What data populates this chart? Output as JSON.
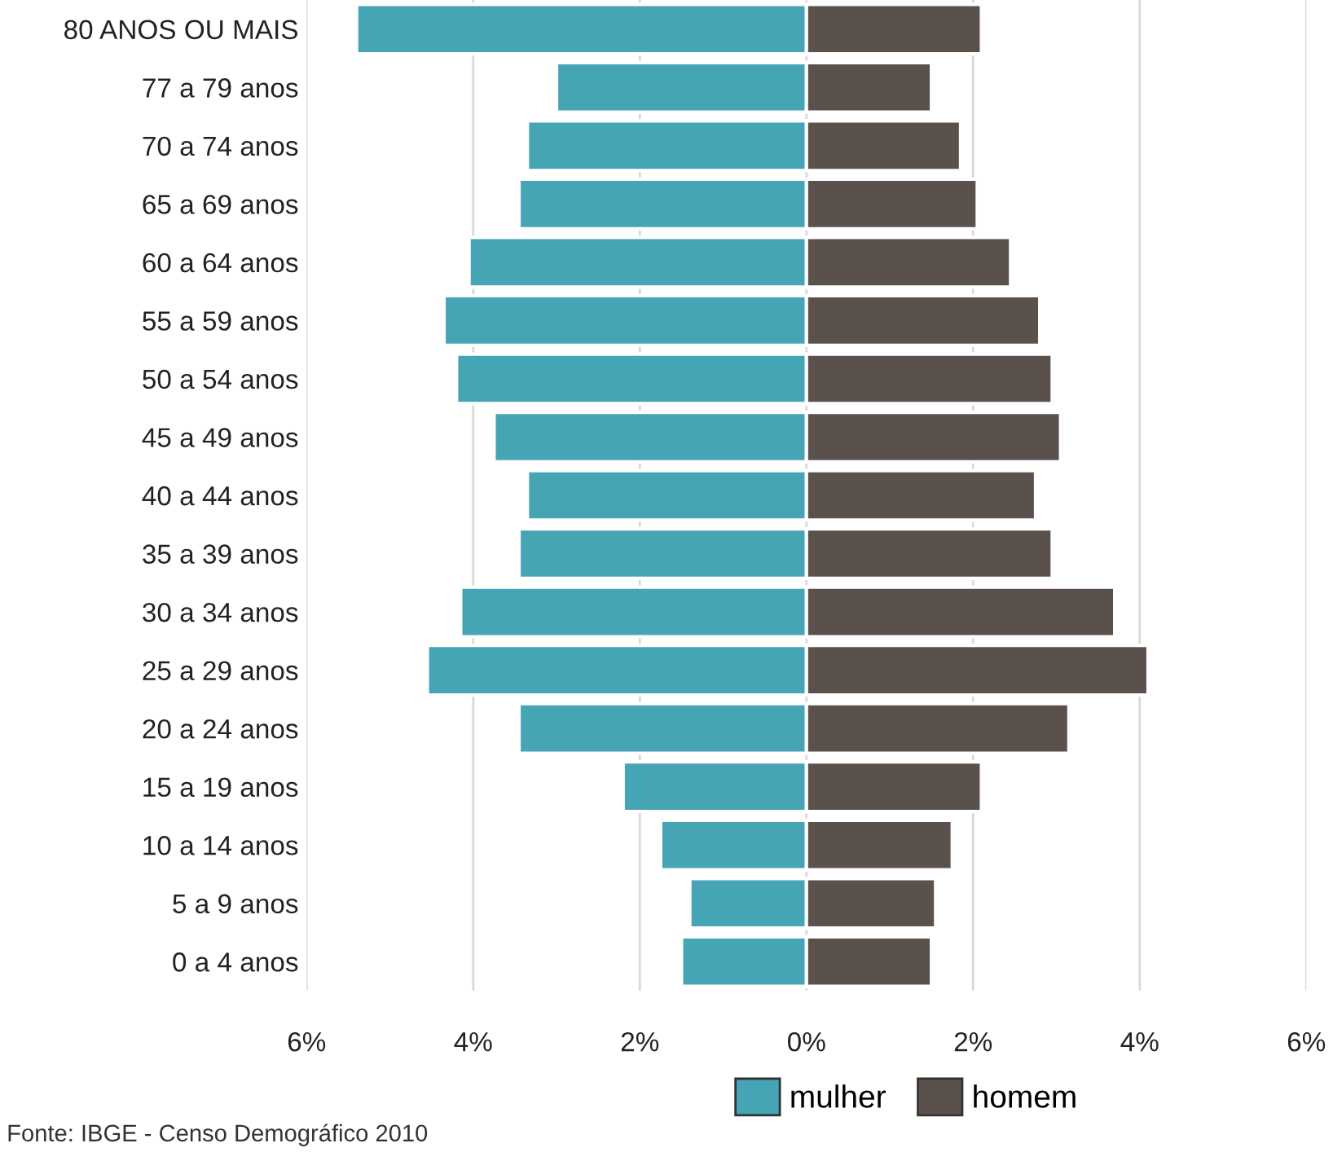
{
  "chart_data": {
    "type": "bar",
    "orientation": "horizontal",
    "stacked": true,
    "categories": [
      "80 ANOS OU MAIS",
      "77 a 79 anos",
      "70 a 74 anos",
      "65 a 69 anos",
      "60 a 64 anos",
      "55 a 59 anos",
      "50 a 54 anos",
      "45 a 49 anos",
      "40 a 44 anos",
      "35 a 39 anos",
      "30 a 34 anos",
      "25 a 29 anos",
      "20 a 24 anos",
      "15 a 19 anos",
      "10 a 14 anos",
      "5 a 9 anos",
      "0 a 4 anos"
    ],
    "series": [
      {
        "name": "mulher",
        "color": "#45a5b5",
        "values": [
          -5.4,
          -3.0,
          -3.35,
          -3.45,
          -4.05,
          -4.35,
          -4.2,
          -3.75,
          -3.35,
          -3.45,
          -4.15,
          -4.55,
          -3.45,
          -2.2,
          -1.75,
          -1.4,
          -1.5
        ]
      },
      {
        "name": "homem",
        "color": "#5a514d",
        "values": [
          2.1,
          1.5,
          1.85,
          2.05,
          2.45,
          2.8,
          2.95,
          3.05,
          2.75,
          2.95,
          3.7,
          4.1,
          3.15,
          2.1,
          1.75,
          1.55,
          1.5
        ]
      }
    ],
    "xlim": [
      -6,
      6
    ],
    "xticks": [
      {
        "value": -6,
        "label": "6%"
      },
      {
        "value": -4,
        "label": "4%"
      },
      {
        "value": -2,
        "label": "2%"
      },
      {
        "value": 0,
        "label": "0%"
      },
      {
        "value": 2,
        "label": "2%"
      },
      {
        "value": 4,
        "label": "4%"
      },
      {
        "value": 6,
        "label": "6%"
      }
    ],
    "grid": "x",
    "legend": "bottom",
    "annotations": [
      "Fonte: IBGE - Censo Demográfico 2010"
    ]
  }
}
